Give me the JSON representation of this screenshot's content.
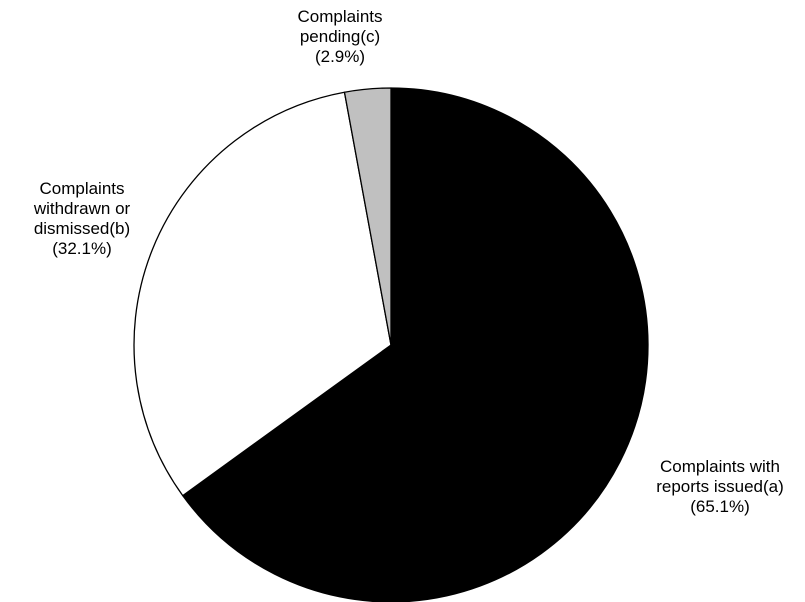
{
  "chart_data": {
    "type": "pie",
    "start": "12 o'clock",
    "direction": "clockwise",
    "border_color": "#000000",
    "slices": [
      {
        "label_lines": [
          "Complaints with",
          "reports issued(a)",
          "(65.1%)"
        ],
        "value": 65.1,
        "color": "#000000"
      },
      {
        "label_lines": [
          "Complaints",
          "withdrawn or",
          "dismissed(b)",
          "(32.1%)"
        ],
        "value": 32.1,
        "color": "#ffffff"
      },
      {
        "label_lines": [
          "Complaints",
          "pending(c)",
          "(2.9%)"
        ],
        "value": 2.9,
        "color": "#c0c0c0"
      }
    ]
  }
}
